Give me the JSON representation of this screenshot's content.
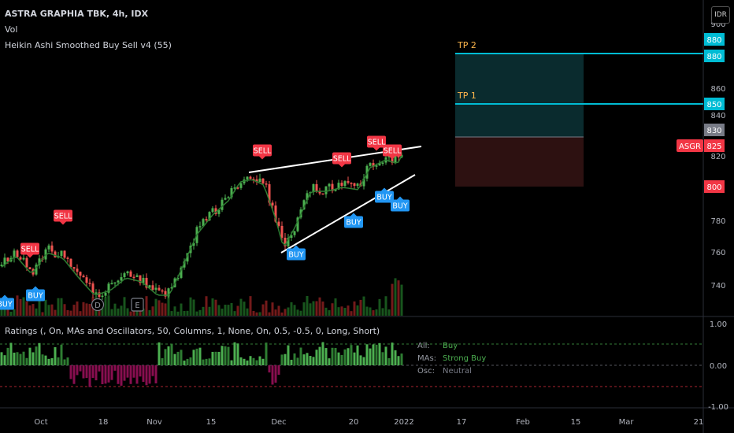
{
  "header": {
    "symbol_line": "ASTRA GRAPHIA TBK, 4h, IDX",
    "vol_label": "Vol",
    "indicator_label": "Heikin Ashi Smoothed Buy Sell v4  (55)",
    "ratings_label": "Ratings (, On, MAs and Oscillators, 50, Columns, 1, None, On, 0.5, -0.5, 0, Long, Short)",
    "currency_badge": "IDR"
  },
  "ratings_box": {
    "all_key": "All:",
    "all_value": "Buy",
    "mas_key": "MAs:",
    "mas_value": "Strong Buy",
    "osc_key": "Osc:",
    "osc_value": "Neutral"
  },
  "price_axis": {
    "ticks": [
      "900",
      "860",
      "840",
      "820",
      "780",
      "760",
      "740"
    ],
    "badges": [
      {
        "text": "880",
        "color": "#00bcd4"
      },
      {
        "text": "880",
        "color": "#00bcd4"
      },
      {
        "text": "850",
        "color": "#00bcd4"
      },
      {
        "text": "830",
        "color": "#787b86"
      },
      {
        "text": "825",
        "color": "#f23645"
      },
      {
        "text": "800",
        "color": "#f23645"
      }
    ],
    "symbol_tag": "ASGR"
  },
  "ratings_axis": {
    "ticks": [
      "1.00",
      "0.00",
      "-1.00"
    ]
  },
  "time_axis": {
    "ticks": [
      "Oct",
      "18",
      "Nov",
      "15",
      "Dec",
      "20",
      "2022",
      "17",
      "Feb",
      "15",
      "Mar",
      "21"
    ]
  },
  "targets": {
    "tp2": "TP 2",
    "tp1": "TP 1"
  },
  "signals": {
    "sell": [
      "SELL",
      "SELL",
      "SELL",
      "SELL",
      "SELL",
      "SELL"
    ],
    "buy": [
      "BUY",
      "BUY",
      "BUY",
      "BUY",
      "BUY",
      "BUY"
    ]
  },
  "events": {
    "dividend": "D",
    "earnings": "E"
  },
  "colors": {
    "up": "#26a69a",
    "green": "#4caf50",
    "down": "#ef5350",
    "cyan": "#00bcd4",
    "sell_tag": "#f23645",
    "buy_tag": "#2196f3"
  }
}
